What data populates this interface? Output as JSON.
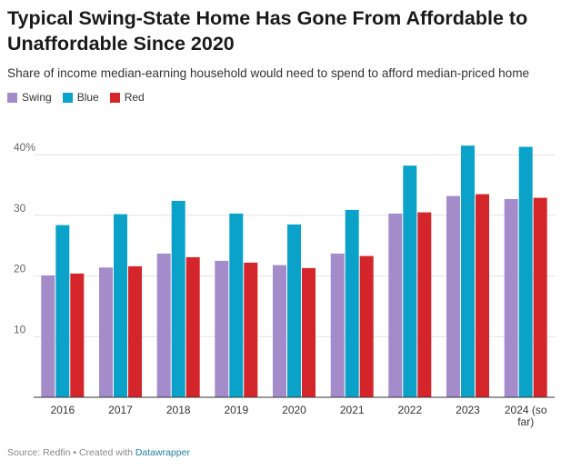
{
  "header": {
    "title": "Typical Swing-State Home Has Gone From Affordable to Unaffordable Since 2020",
    "subtitle": "Share of income median-earning household would need to spend to afford median-priced home"
  },
  "footer": {
    "source": "Source: Redfin • Created with ",
    "tool": "Datawrapper"
  },
  "chart_data": {
    "type": "bar",
    "categories": [
      "2016",
      "2017",
      "2018",
      "2019",
      "2020",
      "2021",
      "2022",
      "2023",
      "2024 (so far)"
    ],
    "series": [
      {
        "name": "Swing",
        "color": "#a48ccb",
        "values": [
          20.1,
          21.4,
          23.7,
          22.5,
          21.8,
          23.7,
          30.3,
          33.2,
          32.7
        ]
      },
      {
        "name": "Blue",
        "color": "#0aa2c9",
        "values": [
          28.4,
          30.2,
          32.4,
          30.3,
          28.5,
          30.9,
          38.2,
          41.5,
          41.3
        ]
      },
      {
        "name": "Red",
        "color": "#d4252a",
        "values": [
          20.4,
          21.6,
          23.1,
          22.2,
          21.3,
          23.3,
          30.5,
          33.5,
          32.9
        ]
      }
    ],
    "yticks": [
      "10",
      "20",
      "30",
      "40%"
    ],
    "ytick_values": [
      10,
      20,
      30,
      40
    ],
    "ylim": [
      0,
      44
    ],
    "grid": true,
    "legend_position": "top-left"
  }
}
